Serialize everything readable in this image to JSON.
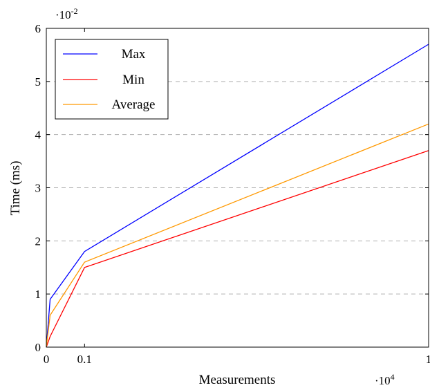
{
  "chart_data": {
    "type": "line",
    "xlabel": "Measurements",
    "ylabel": "Time (ms)",
    "x_multiplier_label": "·10",
    "x_multiplier_exp": "4",
    "y_multiplier_label": "·10",
    "y_multiplier_exp": "-2",
    "xlim": [
      0,
      1
    ],
    "ylim": [
      0,
      6
    ],
    "xticks": [
      0,
      0.1,
      1
    ],
    "xtick_labels": [
      "0",
      "0.1",
      "1"
    ],
    "yticks": [
      0,
      1,
      2,
      3,
      4,
      5,
      6
    ],
    "ytick_labels": [
      "0",
      "1",
      "2",
      "3",
      "4",
      "5",
      "6"
    ],
    "grid": "horizontal dashed",
    "legend_position": "top-left",
    "series": [
      {
        "name": "Max",
        "color": "#0000ff",
        "x": [
          0,
          0.01,
          0.1,
          1
        ],
        "y": [
          0,
          0.9,
          1.8,
          5.7
        ]
      },
      {
        "name": "Min",
        "color": "#ff0000",
        "x": [
          0,
          0.01,
          0.1,
          1
        ],
        "y": [
          0,
          0.2,
          1.5,
          3.7
        ]
      },
      {
        "name": "Average",
        "color": "#ff9900",
        "x": [
          0,
          0.01,
          0.1,
          1
        ],
        "y": [
          0,
          0.6,
          1.6,
          4.2
        ]
      }
    ]
  }
}
